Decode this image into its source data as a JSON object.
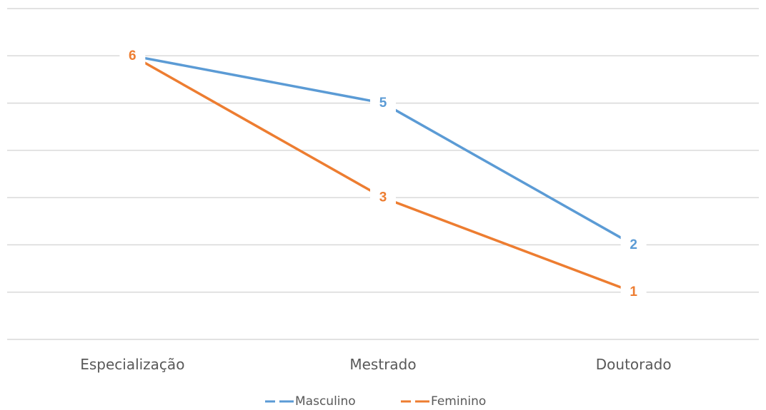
{
  "chart_data": {
    "type": "line",
    "title": "",
    "xlabel": "",
    "ylabel": "",
    "categories": [
      "Especialização",
      "Mestrado",
      "Doutorado"
    ],
    "series": [
      {
        "name": "Masculino",
        "values": [
          6,
          5,
          2
        ],
        "color": "#5b9bd5"
      },
      {
        "name": "Feminino",
        "values": [
          6,
          3,
          1
        ],
        "color": "#ed7d31"
      }
    ],
    "ylim": [
      0,
      7
    ],
    "y_axis_labels_visible": false,
    "grid": true,
    "data_labels": true,
    "legend_position": "bottom"
  }
}
